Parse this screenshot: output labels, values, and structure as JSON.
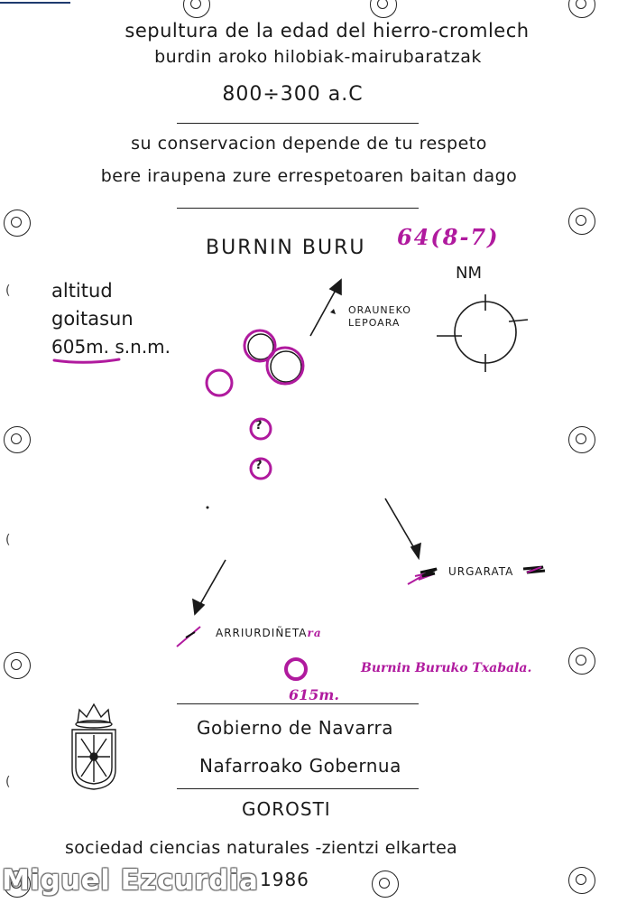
{
  "header": {
    "line1": "sepultura de la edad del hierro-cromlech",
    "line2": "burdin aroko hilobiak-mairubaratzak",
    "dates": "800÷300 a.C",
    "respect_es": "su conservacion depende de tu respeto",
    "respect_eu": "bere iraupena zure errespetoaren baitan dago"
  },
  "site": {
    "name": "BURNIN BURU",
    "handwritten_code": "64(8-7)"
  },
  "altitude": {
    "label_es": "altitud",
    "label_eu": "goitasun",
    "value": "605m. s.n.m."
  },
  "map_labels": {
    "north": "NM",
    "orauneko": "ORAUNEKO",
    "lepoara": "LEPOARA",
    "urgarata": "URGARATA",
    "arriurdineta": "ARRIURDIÑETA",
    "arriurdineta_suffix": "ra",
    "txabala": "Burnin Buruko Txabala.",
    "txabala_alt": "615m.",
    "question": "?"
  },
  "footer": {
    "gov_es": "Gobierno de Navarra",
    "gov_eu": "Nafarroako Gobernua",
    "society": "GOROSTI",
    "society_desc": "sociedad ciencias naturales -zientzi elkartea",
    "year": "1986"
  },
  "watermark": "Miguel Ezcurdia",
  "colors": {
    "ink": "#1a1a1a",
    "marker": "#b01a9e"
  },
  "icons": [
    "binder-hole-icon",
    "north-compass-icon",
    "arrow-icon",
    "navarra-coat-of-arms-icon",
    "cromlech-circle-icon"
  ]
}
